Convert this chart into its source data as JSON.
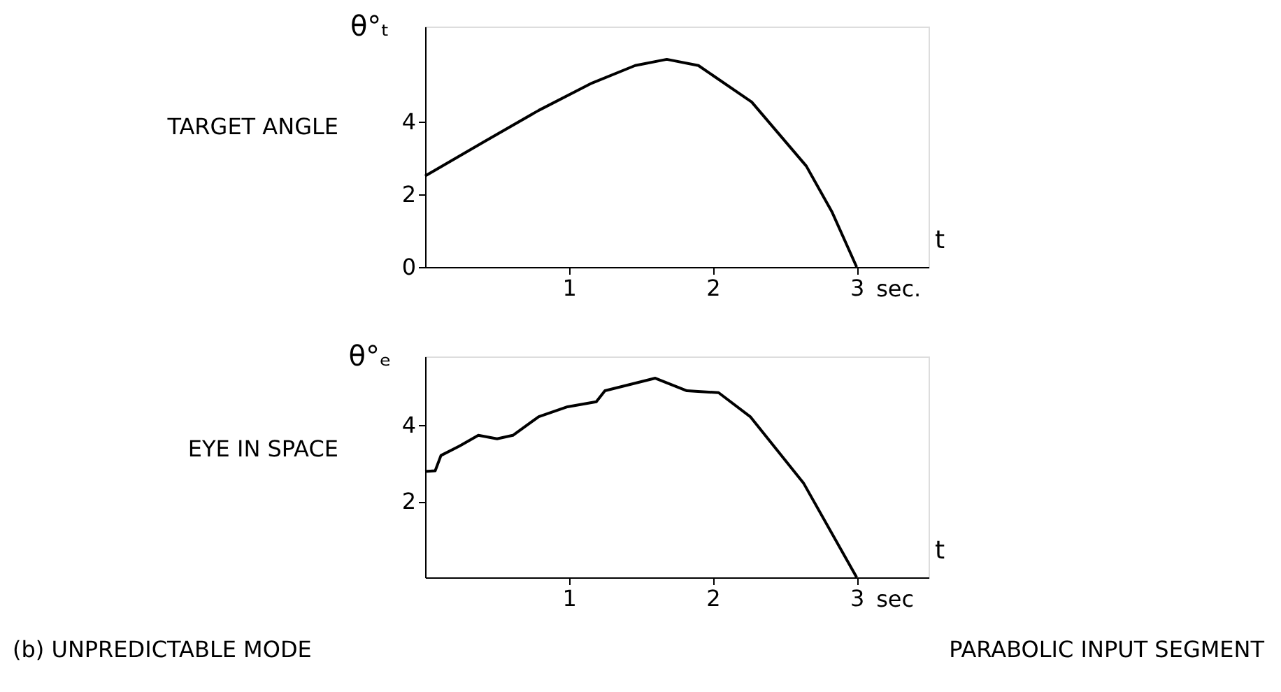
{
  "chart_data": [
    {
      "type": "line",
      "title": "TARGET ANGLE",
      "ylabel": "θ°ₜ",
      "xlabel": "t",
      "color": "#000000",
      "line_style": "solid",
      "marker": "none",
      "grid": false,
      "x": [
        0,
        0.41,
        0.79,
        1.16,
        1.46,
        1.68,
        1.9,
        2.27,
        2.65,
        2.83,
        3
      ],
      "values": [
        2.5,
        3.44,
        4.3,
        5.05,
        5.53,
        5.7,
        5.53,
        4.53,
        2.77,
        1.5,
        0
      ],
      "xlim": [
        0,
        3.5
      ],
      "ylim": [
        0,
        6.6
      ],
      "xticks": [
        1,
        2,
        3
      ],
      "yticks": [
        0,
        2,
        4
      ],
      "annotations": [
        "sec."
      ]
    },
    {
      "type": "line",
      "title": "EYE IN SPACE",
      "ylabel": "θ°ₑ",
      "xlabel": "t",
      "color": "#000000",
      "line_style": "solid",
      "marker": "none",
      "grid": false,
      "x": [
        0,
        0.07,
        0.11,
        0.24,
        0.37,
        0.5,
        0.61,
        0.79,
        0.99,
        1.19,
        1.25,
        1.6,
        1.82,
        2.04,
        2.26,
        2.63,
        3
      ],
      "values": [
        2.78,
        2.8,
        3.2,
        3.45,
        3.73,
        3.64,
        3.73,
        4.22,
        4.48,
        4.61,
        4.9,
        5.23,
        4.9,
        4.85,
        4.22,
        2.48,
        0
      ],
      "xlim": [
        0,
        3.5
      ],
      "ylim": [
        0,
        5.8
      ],
      "xticks": [
        1,
        2,
        3
      ],
      "yticks": [
        2,
        4
      ],
      "annotations": [
        "sec",
        "(b) UNPREDICTABLE MODE",
        "PARABOLIC INPUT SEGMENT"
      ]
    }
  ]
}
